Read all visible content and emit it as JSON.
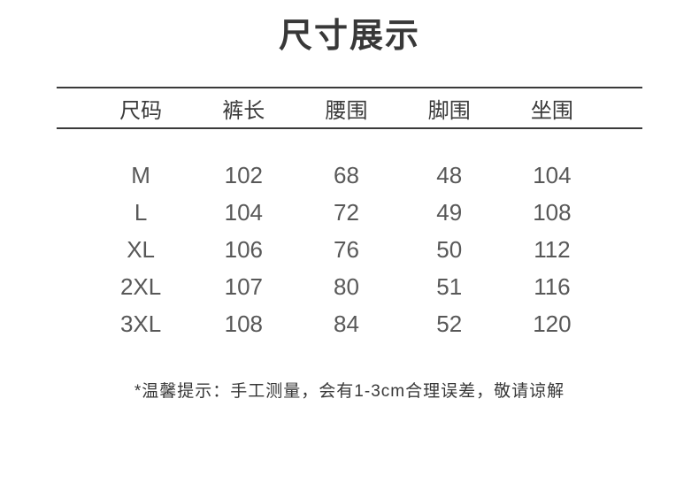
{
  "page": {
    "title": "尺寸展示",
    "background": "#ffffff"
  },
  "colors": {
    "title_text": "#383838",
    "header_text": "#3a3a3a",
    "cell_text": "#585858",
    "rule_line": "#3a3a3a",
    "note_text": "#383838"
  },
  "chart_data": {
    "type": "table",
    "title": "尺寸展示",
    "columns": [
      "尺码",
      "裤长",
      "腰围",
      "脚围",
      "坐围"
    ],
    "rows": [
      [
        "M",
        "102",
        "68",
        "48",
        "104"
      ],
      [
        "L",
        "104",
        "72",
        "49",
        "108"
      ],
      [
        "XL",
        "106",
        "76",
        "50",
        "112"
      ],
      [
        "2XL",
        "107",
        "80",
        "51",
        "116"
      ],
      [
        "3XL",
        "108",
        "84",
        "52",
        "120"
      ]
    ],
    "unit_note": "*温馨提示：手工测量，会有1-3cm合理误差，敬请谅解"
  }
}
